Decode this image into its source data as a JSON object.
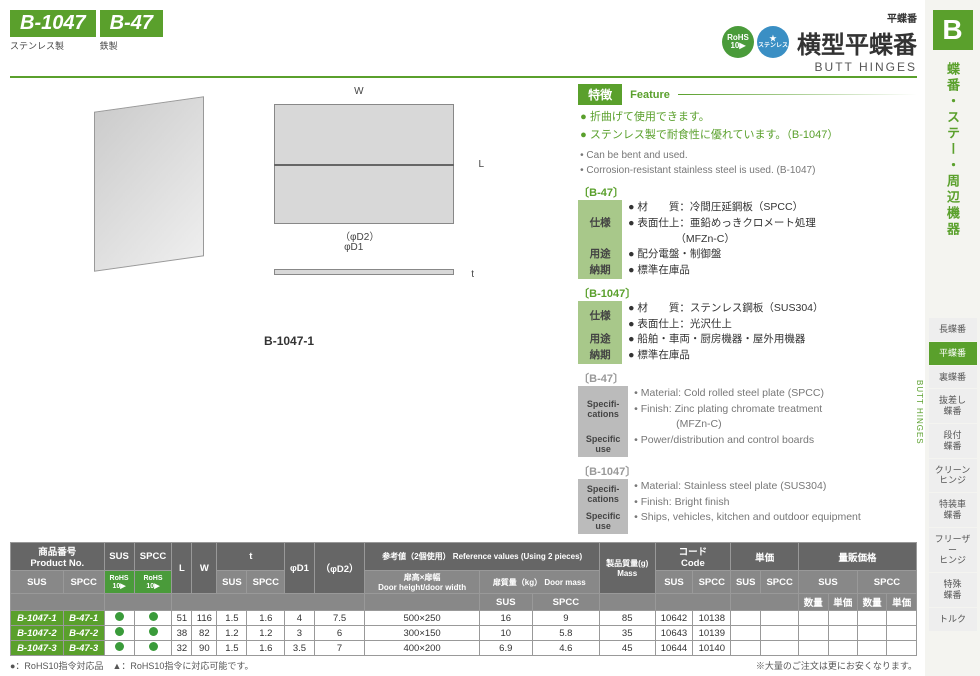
{
  "header": {
    "codes": [
      {
        "code": "B-1047",
        "material": "ステンレス製"
      },
      {
        "code": "B-47",
        "material": "鉄製"
      }
    ],
    "badges": [
      {
        "type": "rohs",
        "line1": "RoHS",
        "line2": "10▶"
      },
      {
        "type": "sus",
        "line1": "★",
        "line2": "ステンレス"
      }
    ],
    "pre_title": "平蝶番",
    "jp_title": "横型平蝶番",
    "en_title": "BUTT HINGES"
  },
  "image_caption": "B-1047-1",
  "diagram_labels": {
    "w": "W",
    "l": "L",
    "d1": "φD1",
    "d2": "（φD2）",
    "t": "t"
  },
  "feature": {
    "header_jp": "特徴",
    "header_en": "Feature",
    "jp": [
      "● 折曲げて使用できます。",
      "● ステンレス製で耐食性に優れています。（B-1047）"
    ],
    "en": [
      "• Can be bent and used.",
      "• Corrosion-resistant stainless steel is used. (B-1047)"
    ]
  },
  "specs": [
    {
      "title": "〔B-47〕",
      "rows": [
        {
          "label": "仕様",
          "val": "● 材　　質：冷間圧延鋼板（SPCC）\n● 表面仕上：亜鉛めっきクロメート処理\n　　　　　（MFZn-C）"
        },
        {
          "label": "用途",
          "val": "● 配分電盤・制御盤"
        },
        {
          "label": "納期",
          "val": "● 標準在庫品"
        }
      ]
    },
    {
      "title": "〔B-1047〕",
      "rows": [
        {
          "label": "仕様",
          "val": "● 材　　質：ステンレス鋼板（SUS304）\n● 表面仕上：光沢仕上"
        },
        {
          "label": "用途",
          "val": "● 船舶・車両・厨房機器・屋外用機器"
        },
        {
          "label": "納期",
          "val": "● 標準在庫品"
        }
      ]
    }
  ],
  "specs_en": [
    {
      "title": "〔B-47〕",
      "rows": [
        {
          "label": "Specifi-\ncations",
          "val": "• Material: Cold rolled steel plate (SPCC)\n• Finish: Zinc plating chromate treatment\n　　　　(MFZn-C)"
        },
        {
          "label": "Specific use",
          "val": "• Power/distribution and control boards"
        }
      ]
    },
    {
      "title": "〔B-1047〕",
      "rows": [
        {
          "label": "Specifi-\ncations",
          "val": "• Material: Stainless steel plate (SUS304)\n• Finish: Bright finish"
        },
        {
          "label": "Specific use",
          "val": "• Ships, vehicles, kitchen and outdoor equipment"
        }
      ]
    }
  ],
  "table": {
    "headers": {
      "pn": "商品番号\nProduct No.",
      "sus": "SUS",
      "spcc": "SPCC",
      "rohs_sus": "SUS",
      "rohs_spcc": "SPCC",
      "l": "L",
      "w": "W",
      "t": "t",
      "t_sus": "SUS",
      "t_spcc": "SPCC",
      "d1": "φD1",
      "d2": "（φD2）",
      "ref": "参考値（2個使用） Reference values (Using 2 pieces)",
      "door": "扉高×扉幅\nDoor height/door width",
      "mass_hdr": "扉質量（kg） Door mass",
      "mass_sus": "SUS",
      "mass_spcc": "SPCC",
      "pmass": "製品質量(g)\nMass",
      "code": "コード\nCode",
      "code_sus": "SUS",
      "code_spcc": "SPCC",
      "price": "単価",
      "price_sus": "SUS",
      "price_spcc": "SPCC",
      "bulk": "量販価格",
      "bulk_sus": "SUS",
      "bulk_spcc": "SPCC",
      "qty": "数量",
      "unit": "単価"
    },
    "rohs_badge": "RoHS\n10▶",
    "rows": [
      {
        "sus": "B-1047-1",
        "spcc": "B-47-1",
        "r1": "●",
        "r2": "●",
        "l": "51",
        "w": "116",
        "t_sus": "1.5",
        "t_spcc": "1.6",
        "d1": "4",
        "d2": "7.5",
        "door": "500×250",
        "m_sus": "16",
        "m_spcc": "9",
        "pm": "85",
        "c_sus": "10642",
        "c_spcc": "10138"
      },
      {
        "sus": "B-1047-2",
        "spcc": "B-47-2",
        "r1": "●",
        "r2": "●",
        "l": "38",
        "w": "82",
        "t_sus": "1.2",
        "t_spcc": "1.2",
        "d1": "3",
        "d2": "6",
        "door": "300×150",
        "m_sus": "10",
        "m_spcc": "5.8",
        "pm": "35",
        "c_sus": "10643",
        "c_spcc": "10139"
      },
      {
        "sus": "B-1047-3",
        "spcc": "B-47-3",
        "r1": "●",
        "r2": "●",
        "l": "32",
        "w": "90",
        "t_sus": "1.5",
        "t_spcc": "1.6",
        "d1": "3.5",
        "d2": "7",
        "door": "400×200",
        "m_sus": "6.9",
        "m_spcc": "4.6",
        "pm": "45",
        "c_sus": "10644",
        "c_spcc": "10140"
      }
    ]
  },
  "footnotes": {
    "left": "●：RoHS10指令対応品　▲：RoHS10指令に対応可能です。",
    "right": "※大量のご注文は更にお安くなります。"
  },
  "colors": {
    "green": "#5aa02c",
    "dot": "#3a9b3a"
  },
  "sidebar": {
    "letter": "B",
    "category": "蝶番・ステー・周辺機器",
    "label_en": "BUTT HINGES",
    "items": [
      {
        "label": "長蝶番",
        "active": false
      },
      {
        "label": "平蝶番",
        "active": true
      },
      {
        "label": "裏蝶番",
        "active": false
      },
      {
        "label": "抜差し\n蝶番",
        "active": false
      },
      {
        "label": "段付\n蝶番",
        "active": false
      },
      {
        "label": "クリーン\nヒンジ",
        "active": false
      },
      {
        "label": "特装車\n蝶番",
        "active": false
      },
      {
        "label": "フリーザー\nヒンジ",
        "active": false
      },
      {
        "label": "特殊\n蝶番",
        "active": false
      },
      {
        "label": "トルク",
        "active": false
      }
    ]
  }
}
